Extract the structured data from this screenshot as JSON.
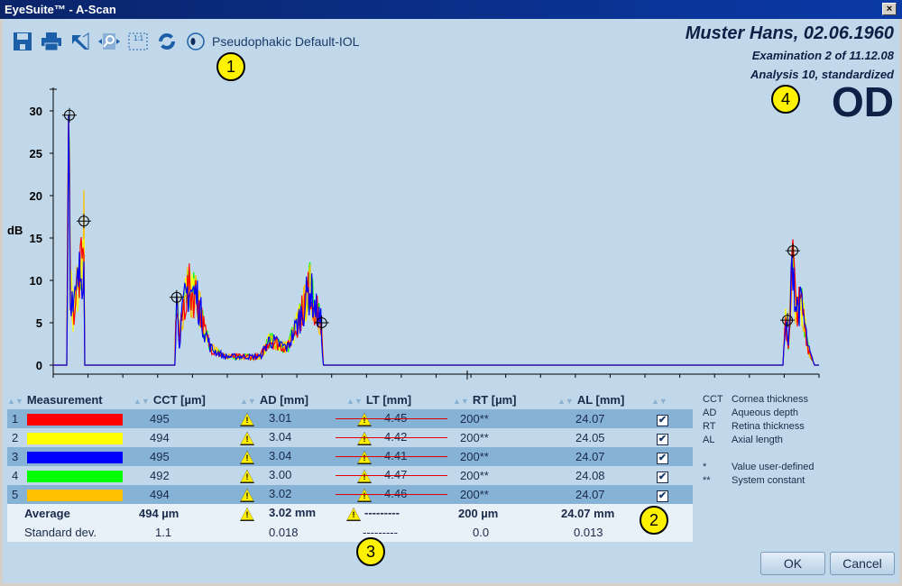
{
  "window": {
    "title": "EyeSuite™ - A-Scan",
    "close": "×"
  },
  "toolbar": {
    "iol_label": "Pseudophakic Default-IOL"
  },
  "patient": {
    "name": "Muster Hans,  02.06.1960",
    "exam": "Examination 2 of 11.12.08",
    "analysis": "Analysis 10, standardized",
    "eye": "OD"
  },
  "callouts": [
    "1",
    "2",
    "3",
    "4"
  ],
  "chart_data": {
    "type": "line",
    "ylabel": "dB",
    "ylim": [
      0,
      32
    ],
    "yticks": [
      0,
      5,
      10,
      15,
      20,
      25,
      30
    ],
    "xlim": [
      0,
      850
    ],
    "profile": [
      [
        0,
        0
      ],
      [
        15,
        0
      ],
      [
        17,
        29.5
      ],
      [
        19,
        10
      ],
      [
        22,
        6
      ],
      [
        28,
        10
      ],
      [
        33,
        12
      ],
      [
        34,
        17
      ],
      [
        35,
        0
      ],
      [
        135,
        0
      ],
      [
        137,
        8
      ],
      [
        140,
        3
      ],
      [
        145,
        7
      ],
      [
        150,
        9
      ],
      [
        160,
        8
      ],
      [
        168,
        4
      ],
      [
        175,
        2
      ],
      [
        190,
        1
      ],
      [
        230,
        1
      ],
      [
        240,
        3
      ],
      [
        260,
        2
      ],
      [
        275,
        6
      ],
      [
        285,
        9
      ],
      [
        290,
        7
      ],
      [
        297,
        5
      ],
      [
        300,
        0
      ],
      [
        810,
        0
      ],
      [
        813,
        5
      ],
      [
        816,
        2
      ],
      [
        821,
        13.5
      ],
      [
        824,
        7
      ],
      [
        831,
        7
      ],
      [
        838,
        2
      ],
      [
        845,
        0
      ],
      [
        850,
        0
      ]
    ],
    "markers": [
      [
        18,
        29.5
      ],
      [
        34,
        17
      ],
      [
        137,
        8
      ],
      [
        298,
        5
      ],
      [
        815,
        5.3
      ],
      [
        821,
        13.5
      ]
    ],
    "series": [
      {
        "name": "1",
        "color": "#ff0000"
      },
      {
        "name": "2",
        "color": "#ffff00"
      },
      {
        "name": "3",
        "color": "#0000ff"
      },
      {
        "name": "4",
        "color": "#00ff00"
      },
      {
        "name": "5",
        "color": "#ffc000"
      }
    ]
  },
  "table": {
    "headers": [
      "Measurement",
      "CCT [µm]",
      "AD [mm]",
      "LT [mm]",
      "RT [µm]",
      "AL [mm]"
    ],
    "rows": [
      {
        "n": "1",
        "color": "#ff0000",
        "cct": "495",
        "ad": "3.01",
        "lt": "4.45",
        "rt": "200**",
        "al": "24.07",
        "checked": "✔"
      },
      {
        "n": "2",
        "color": "#ffff00",
        "cct": "494",
        "ad": "3.04",
        "lt": "4.42",
        "rt": "200**",
        "al": "24.05",
        "checked": "✔"
      },
      {
        "n": "3",
        "color": "#0000ff",
        "cct": "495",
        "ad": "3.04",
        "lt": "4.41",
        "rt": "200**",
        "al": "24.07",
        "checked": "✔"
      },
      {
        "n": "4",
        "color": "#00ff00",
        "cct": "492",
        "ad": "3.00",
        "lt": "4.47",
        "rt": "200**",
        "al": "24.08",
        "checked": "✔"
      },
      {
        "n": "5",
        "color": "#ffc000",
        "cct": "494",
        "ad": "3.02",
        "lt": "4.46",
        "rt": "200**",
        "al": "24.07",
        "checked": "✔"
      }
    ],
    "average": {
      "label": "Average",
      "cct": "494 µm",
      "ad": "3.02 mm",
      "lt": "---------",
      "rt": "200 µm",
      "al": "24.07 mm"
    },
    "stddev": {
      "label": "Standard dev.",
      "cct": "1.1",
      "ad": "0.018",
      "lt": "---------",
      "rt": "0.0",
      "al": "0.013"
    }
  },
  "legend": [
    [
      "CCT",
      "Cornea thickness"
    ],
    [
      "AD",
      "Aqueous depth"
    ],
    [
      "RT",
      "Retina thickness"
    ],
    [
      "AL",
      "Axial length"
    ],
    [
      "",
      ""
    ],
    [
      "*",
      "Value user-defined"
    ],
    [
      "**",
      "System constant"
    ]
  ],
  "buttons": {
    "ok": "OK",
    "cancel": "Cancel"
  }
}
